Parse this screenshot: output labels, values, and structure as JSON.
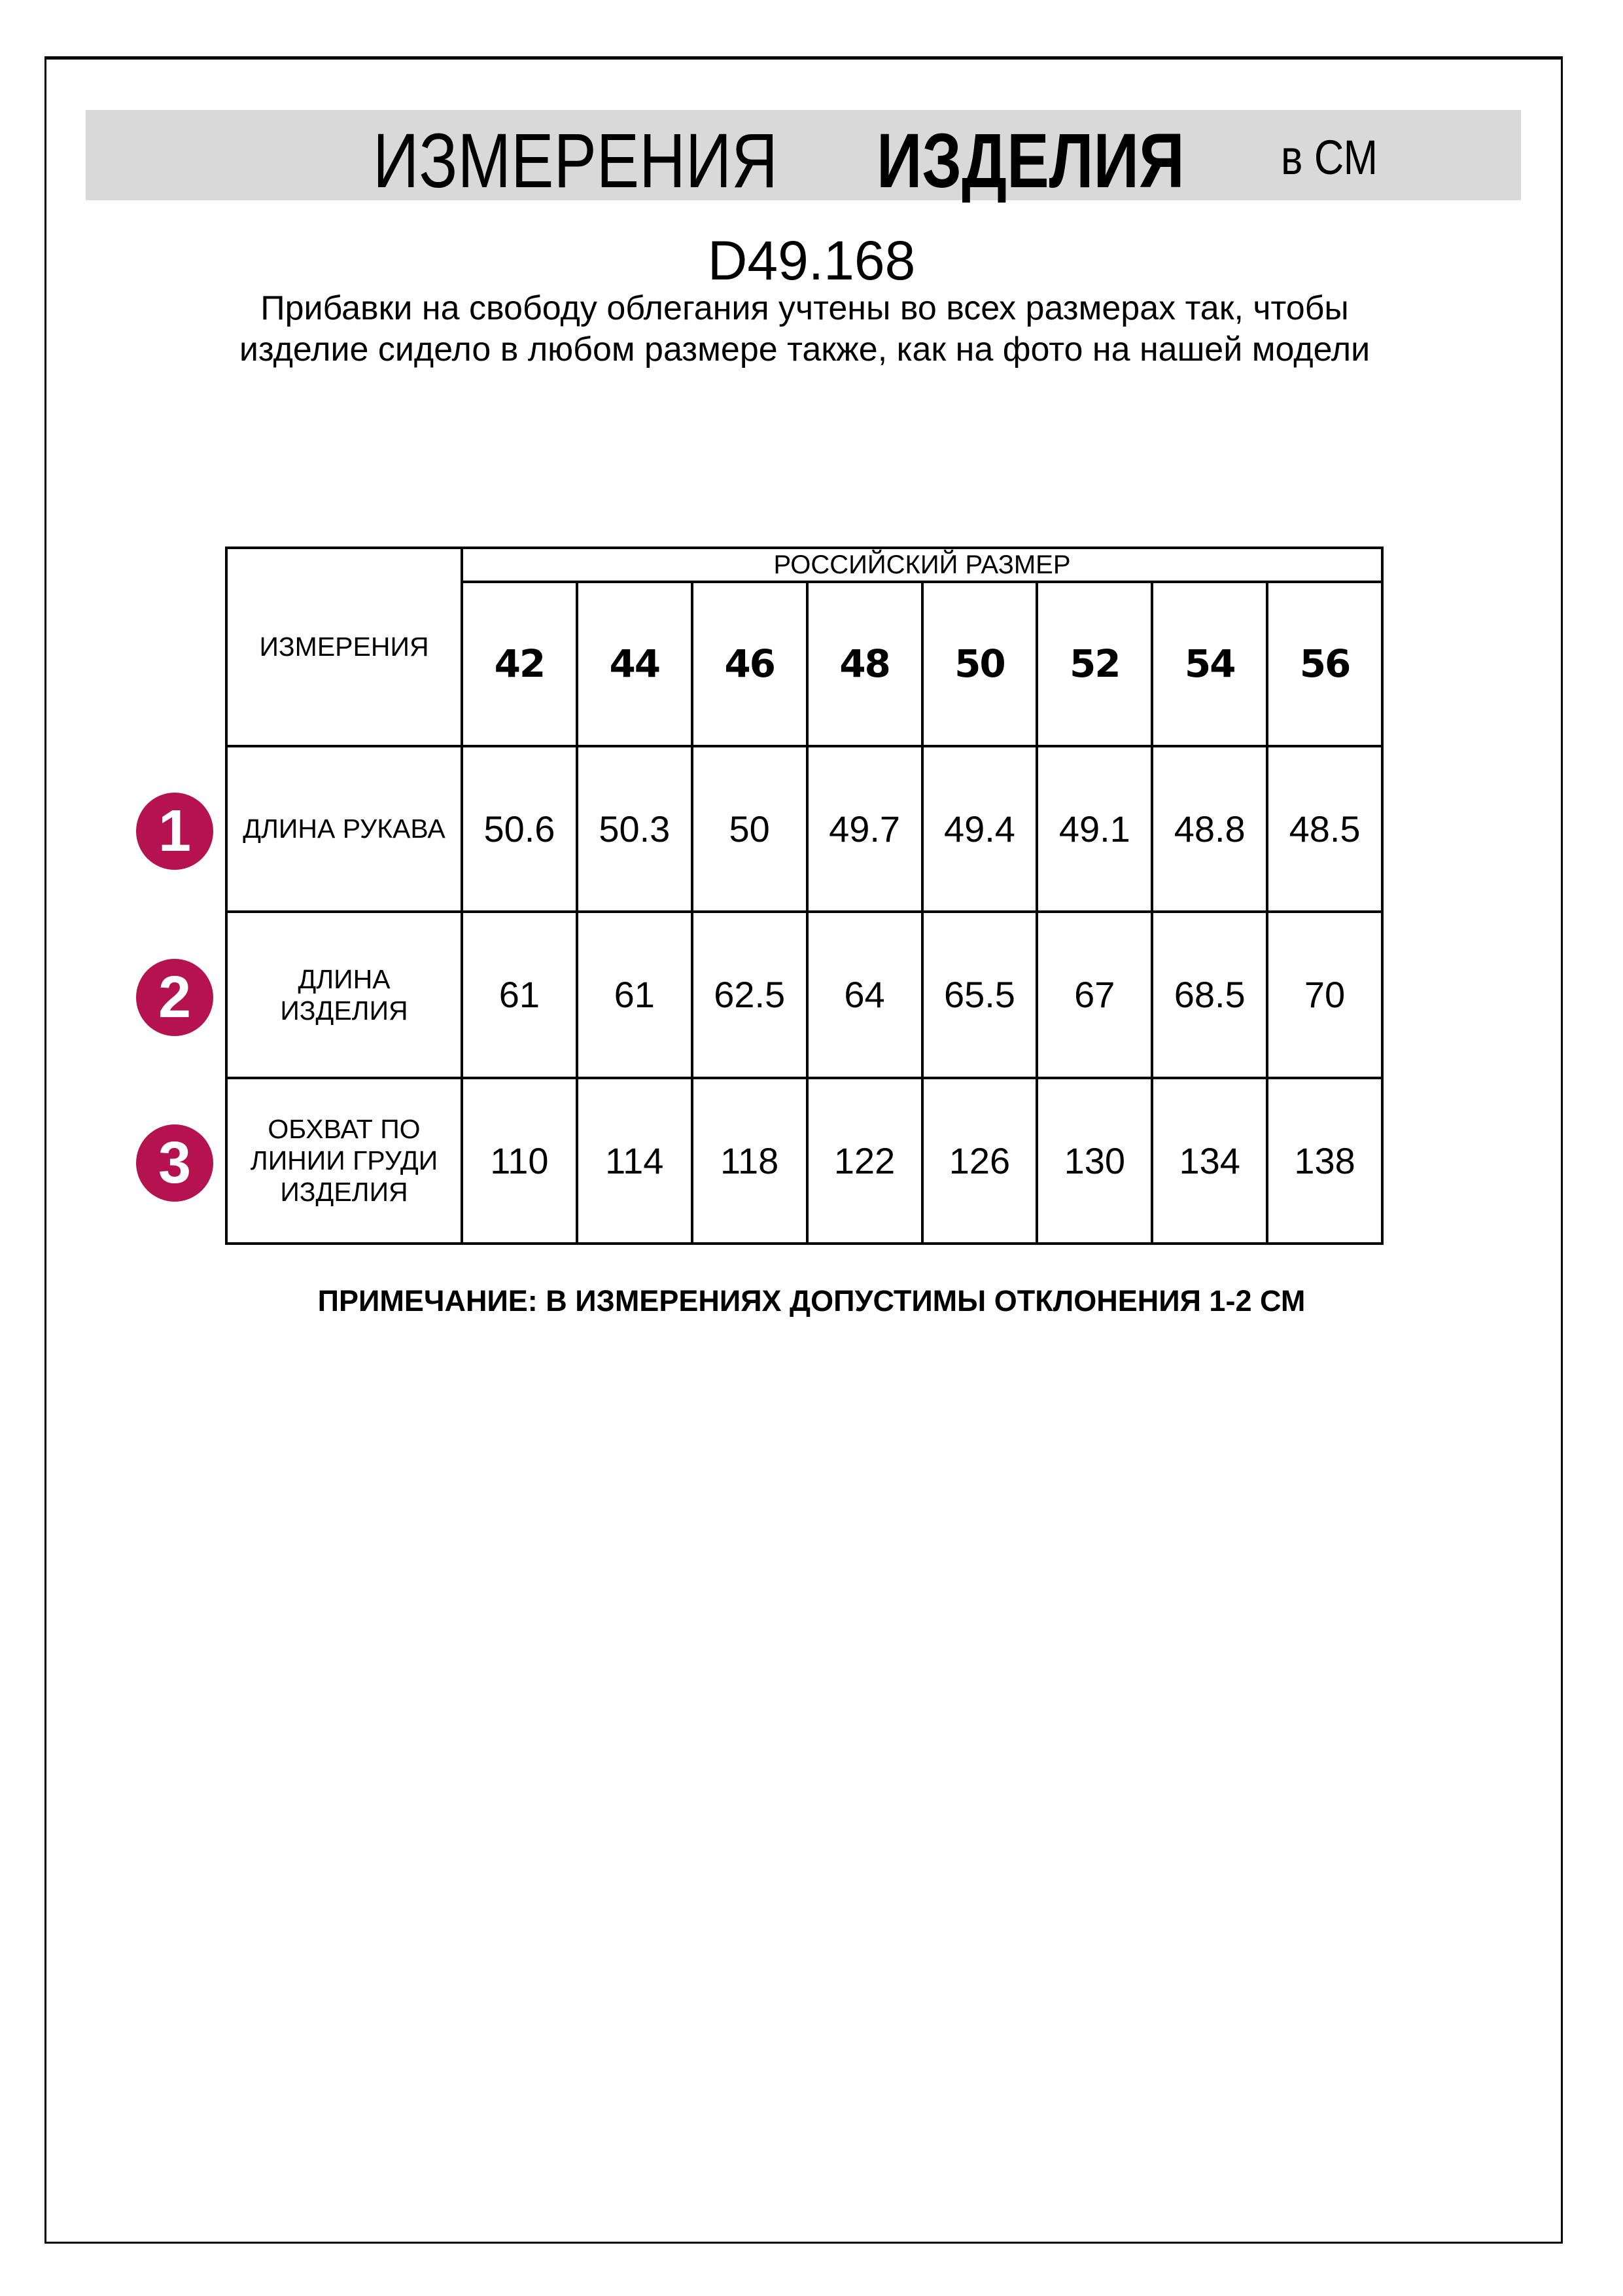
{
  "header": {
    "title_part1": "ИЗМЕРЕНИЯ",
    "title_part2": "ИЗДЕЛИЯ",
    "unit": "в СМ"
  },
  "product_code": "D49.168",
  "description": "Прибавки на свободу облегания учтены во всех размерах так, чтобы изделие сидело в любом размере также, как на фото на нашей модели",
  "table": {
    "measurements_header": "ИЗМЕРЕНИЯ",
    "size_group_header": "РОССИЙСКИЙ РАЗМЕР",
    "sizes": [
      "42",
      "44",
      "46",
      "48",
      "50",
      "52",
      "54",
      "56"
    ],
    "rows": [
      {
        "number": "1",
        "label": "ДЛИНА РУКАВА",
        "values": [
          "50.6",
          "50.3",
          "50",
          "49.7",
          "49.4",
          "49.1",
          "48.8",
          "48.5"
        ]
      },
      {
        "number": "2",
        "label": "ДЛИНА ИЗДЕЛИЯ",
        "values": [
          "61",
          "61",
          "62.5",
          "64",
          "65.5",
          "67",
          "68.5",
          "70"
        ]
      },
      {
        "number": "3",
        "label": "ОБХВАТ ПО ЛИНИИ ГРУДИ ИЗДЕЛИЯ",
        "values": [
          "110",
          "114",
          "118",
          "122",
          "126",
          "130",
          "134",
          "138"
        ]
      }
    ]
  },
  "note": "ПРИМЕЧАНИЕ: В ИЗМЕРЕНИЯХ ДОПУСТИМЫ ОТКЛОНЕНИЯ 1-2 СМ",
  "colors": {
    "banner": "#d9d9d9",
    "badge": "#b5134f"
  }
}
